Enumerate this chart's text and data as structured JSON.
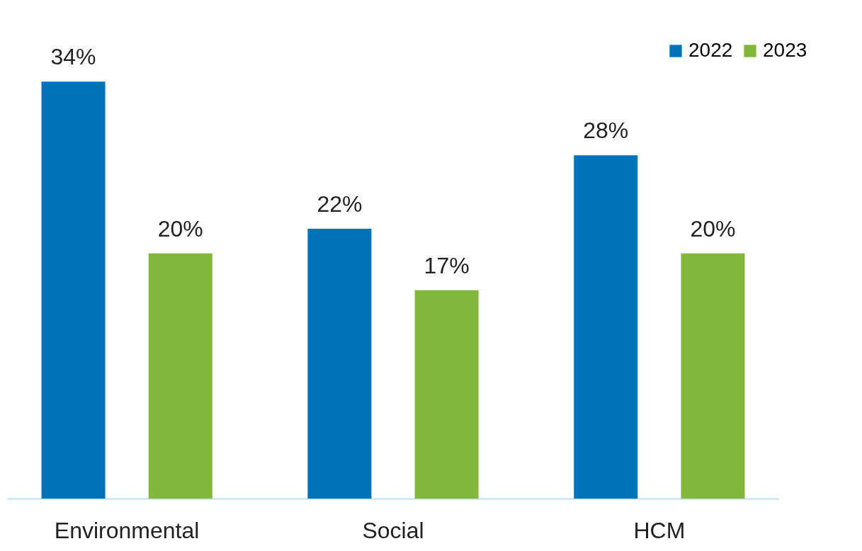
{
  "chart_data": {
    "type": "bar",
    "categories": [
      "Environmental",
      "Social",
      "HCM"
    ],
    "series": [
      {
        "name": "2022",
        "color": "#0072b8",
        "values": [
          34,
          22,
          28
        ],
        "value_labels": [
          "34%",
          "22%",
          "28%"
        ]
      },
      {
        "name": "2023",
        "color": "#82b73b",
        "values": [
          20,
          17,
          20
        ],
        "value_labels": [
          "20%",
          "17%",
          "20%"
        ]
      }
    ],
    "legend": "top right",
    "grid": false
  }
}
